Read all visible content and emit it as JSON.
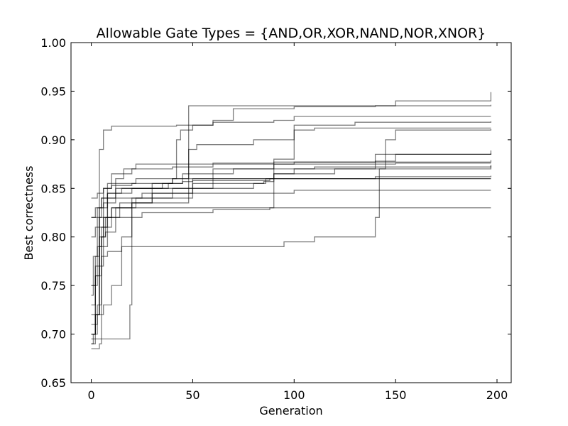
{
  "chart_data": {
    "type": "line",
    "title": "Allowable Gate Types = {AND,OR,XOR,NAND,NOR,XNOR}",
    "xlabel": "Generation",
    "ylabel": "Best correctness",
    "xlim": [
      -10,
      207
    ],
    "ylim": [
      0.65,
      1.0
    ],
    "xticks": [
      "0",
      "50",
      "100",
      "150",
      "200"
    ],
    "yticks": [
      "0.65",
      "0.70",
      "0.75",
      "0.80",
      "0.85",
      "0.90",
      "0.95",
      "1.00"
    ],
    "grid": false,
    "legend": "none",
    "line_color": "#000000",
    "series": [
      {
        "points": [
          [
            0,
            0.74
          ],
          [
            1,
            0.78
          ],
          [
            3,
            0.79
          ],
          [
            5,
            0.8
          ],
          [
            7,
            0.805
          ],
          [
            12,
            0.82
          ],
          [
            20,
            0.835
          ],
          [
            30,
            0.845
          ],
          [
            50,
            0.86
          ],
          [
            90,
            0.865
          ],
          [
            100,
            0.87
          ],
          [
            140,
            0.885
          ],
          [
            197,
            0.889
          ]
        ]
      },
      {
        "points": [
          [
            0,
            0.82
          ],
          [
            2,
            0.83
          ],
          [
            5,
            0.84
          ],
          [
            8,
            0.845
          ],
          [
            15,
            0.85
          ],
          [
            35,
            0.855
          ],
          [
            40,
            0.86
          ],
          [
            60,
            0.87
          ],
          [
            90,
            0.875
          ],
          [
            150,
            0.876
          ],
          [
            197,
            0.876
          ]
        ]
      },
      {
        "points": [
          [
            0,
            0.84
          ],
          [
            3,
            0.845
          ],
          [
            6,
            0.85
          ],
          [
            10,
            0.853
          ],
          [
            20,
            0.855
          ],
          [
            45,
            0.857
          ],
          [
            50,
            0.858
          ],
          [
            85,
            0.858
          ],
          [
            88,
            0.86
          ],
          [
            130,
            0.86
          ],
          [
            197,
            0.86
          ]
        ]
      },
      {
        "points": [
          [
            0,
            0.7
          ],
          [
            2,
            0.72
          ],
          [
            4,
            0.8
          ],
          [
            6,
            0.85
          ],
          [
            10,
            0.865
          ],
          [
            20,
            0.87
          ],
          [
            40,
            0.872
          ],
          [
            60,
            0.875
          ],
          [
            100,
            0.877
          ],
          [
            197,
            0.879
          ]
        ]
      },
      {
        "points": [
          [
            0,
            0.72
          ],
          [
            2,
            0.75
          ],
          [
            3,
            0.82
          ],
          [
            5,
            0.84
          ],
          [
            12,
            0.85
          ],
          [
            30,
            0.855
          ],
          [
            45,
            0.865
          ],
          [
            70,
            0.87
          ],
          [
            110,
            0.872
          ],
          [
            197,
            0.873
          ]
        ]
      },
      {
        "points": [
          [
            0,
            0.69
          ],
          [
            1,
            0.7
          ],
          [
            3,
            0.73
          ],
          [
            5,
            0.8
          ],
          [
            7,
            0.82
          ],
          [
            10,
            0.83
          ],
          [
            20,
            0.835
          ],
          [
            30,
            0.84
          ],
          [
            50,
            0.845
          ],
          [
            100,
            0.848
          ],
          [
            197,
            0.848
          ]
        ]
      },
      {
        "points": [
          [
            0,
            0.69
          ],
          [
            2,
            0.72
          ],
          [
            4,
            0.77
          ],
          [
            6,
            0.82
          ],
          [
            12,
            0.83
          ],
          [
            18,
            0.83
          ],
          [
            22,
            0.83
          ],
          [
            60,
            0.83
          ],
          [
            100,
            0.83
          ],
          [
            197,
            0.83
          ]
        ]
      },
      {
        "points": [
          [
            0,
            0.685
          ],
          [
            3,
            0.685
          ],
          [
            4,
            0.69
          ],
          [
            5,
            0.78
          ],
          [
            8,
            0.785
          ],
          [
            15,
            0.79
          ],
          [
            50,
            0.79
          ],
          [
            90,
            0.79
          ],
          [
            95,
            0.795
          ],
          [
            110,
            0.8
          ],
          [
            138,
            0.8
          ],
          [
            140,
            0.82
          ],
          [
            142,
            0.87
          ],
          [
            145,
            0.9
          ],
          [
            150,
            0.91
          ],
          [
            197,
            0.911
          ]
        ]
      },
      {
        "points": [
          [
            0,
            0.8
          ],
          [
            2,
            0.81
          ],
          [
            4,
            0.89
          ],
          [
            6,
            0.91
          ],
          [
            10,
            0.914
          ],
          [
            20,
            0.914
          ],
          [
            42,
            0.915
          ],
          [
            50,
            0.915
          ],
          [
            60,
            0.918
          ],
          [
            90,
            0.92
          ],
          [
            100,
            0.924
          ],
          [
            197,
            0.924
          ]
        ]
      },
      {
        "points": [
          [
            0,
            0.7
          ],
          [
            2,
            0.72
          ],
          [
            4,
            0.82
          ],
          [
            8,
            0.855
          ],
          [
            18,
            0.855
          ],
          [
            22,
            0.86
          ],
          [
            42,
            0.9
          ],
          [
            44,
            0.91
          ],
          [
            50,
            0.915
          ],
          [
            60,
            0.92
          ],
          [
            70,
            0.932
          ],
          [
            100,
            0.934
          ],
          [
            140,
            0.935
          ],
          [
            150,
            0.94
          ],
          [
            197,
            0.949
          ]
        ]
      },
      {
        "points": [
          [
            0,
            0.75
          ],
          [
            2,
            0.78
          ],
          [
            4,
            0.83
          ],
          [
            8,
            0.845
          ],
          [
            20,
            0.85
          ],
          [
            38,
            0.855
          ],
          [
            40,
            0.86
          ],
          [
            48,
            0.935
          ],
          [
            70,
            0.935
          ],
          [
            100,
            0.935
          ],
          [
            197,
            0.936
          ]
        ]
      },
      {
        "points": [
          [
            0,
            0.71
          ],
          [
            3,
            0.72
          ],
          [
            6,
            0.73
          ],
          [
            10,
            0.75
          ],
          [
            15,
            0.8
          ],
          [
            20,
            0.82
          ],
          [
            25,
            0.825
          ],
          [
            60,
            0.828
          ],
          [
            88,
            0.83
          ],
          [
            90,
            0.88
          ],
          [
            95,
            0.88
          ],
          [
            100,
            0.91
          ],
          [
            110,
            0.912
          ],
          [
            140,
            0.912
          ],
          [
            197,
            0.912
          ]
        ]
      },
      {
        "points": [
          [
            0,
            0.695
          ],
          [
            5,
            0.695
          ],
          [
            10,
            0.695
          ],
          [
            18,
            0.695
          ],
          [
            19,
            0.73
          ],
          [
            20,
            0.83
          ],
          [
            22,
            0.84
          ],
          [
            30,
            0.85
          ],
          [
            50,
            0.855
          ],
          [
            60,
            0.86
          ],
          [
            90,
            0.865
          ],
          [
            120,
            0.87
          ],
          [
            197,
            0.874
          ]
        ]
      },
      {
        "points": [
          [
            0,
            0.73
          ],
          [
            2,
            0.76
          ],
          [
            5,
            0.81
          ],
          [
            10,
            0.83
          ],
          [
            20,
            0.835
          ],
          [
            45,
            0.835
          ],
          [
            48,
            0.89
          ],
          [
            52,
            0.895
          ],
          [
            75,
            0.895
          ],
          [
            80,
            0.9
          ],
          [
            100,
            0.915
          ],
          [
            130,
            0.918
          ],
          [
            197,
            0.919
          ]
        ]
      },
      {
        "points": [
          [
            0,
            0.75
          ],
          [
            2,
            0.77
          ],
          [
            4,
            0.79
          ],
          [
            8,
            0.82
          ],
          [
            14,
            0.835
          ],
          [
            20,
            0.84
          ],
          [
            40,
            0.85
          ],
          [
            60,
            0.855
          ],
          [
            85,
            0.857
          ],
          [
            90,
            0.86
          ],
          [
            140,
            0.862
          ],
          [
            197,
            0.863
          ]
        ]
      },
      {
        "points": [
          [
            0,
            0.82
          ],
          [
            3,
            0.83
          ],
          [
            6,
            0.835
          ],
          [
            12,
            0.84
          ],
          [
            25,
            0.845
          ],
          [
            50,
            0.85
          ],
          [
            80,
            0.855
          ],
          [
            86,
            0.86
          ],
          [
            150,
            0.86
          ],
          [
            197,
            0.86
          ]
        ]
      },
      {
        "points": [
          [
            0,
            0.7
          ],
          [
            2,
            0.76
          ],
          [
            4,
            0.81
          ],
          [
            8,
            0.84
          ],
          [
            12,
            0.86
          ],
          [
            16,
            0.87
          ],
          [
            22,
            0.875
          ],
          [
            40,
            0.875
          ],
          [
            60,
            0.876
          ],
          [
            90,
            0.877
          ],
          [
            140,
            0.878
          ],
          [
            150,
            0.885
          ],
          [
            197,
            0.886
          ]
        ]
      }
    ]
  }
}
